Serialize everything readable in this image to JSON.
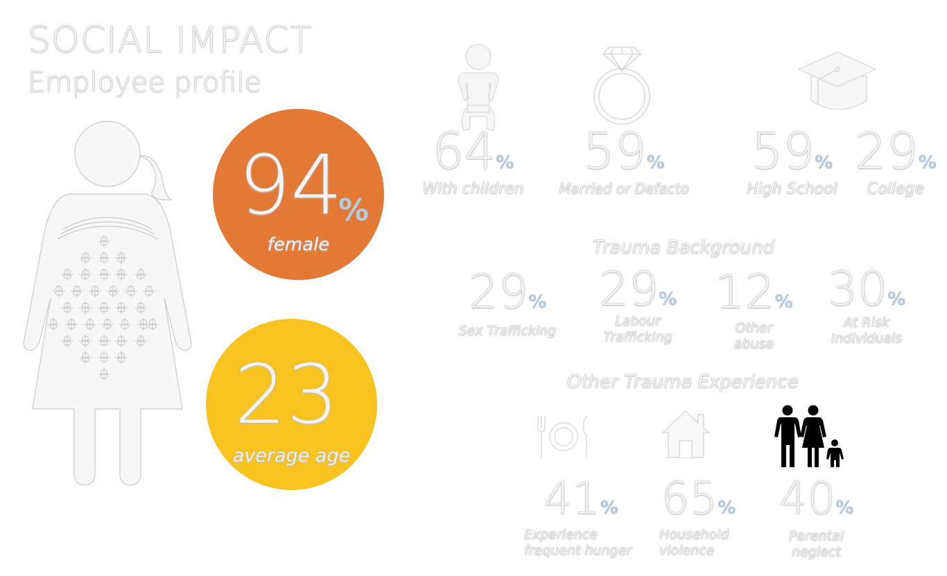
{
  "header": {
    "title": "SOCIAL IMPACT",
    "subtitle": "Employee profile"
  },
  "colors": {
    "orange": "#e47936",
    "yellow": "#f9c31f",
    "ghost": "#f3f3f3",
    "pct": "#b9c9dc"
  },
  "female": {
    "value": "94",
    "unit": "%",
    "label": "female"
  },
  "age": {
    "value": "23",
    "label": "average age"
  },
  "top_stats": [
    {
      "value": "64",
      "unit": "%",
      "label": "With children",
      "icon": "baby-icon"
    },
    {
      "value": "59",
      "unit": "%",
      "label": "Married or Defacto",
      "icon": "ring-icon"
    },
    {
      "value": "59",
      "unit": "%",
      "label": "High School",
      "icon": "graduation-cap-icon"
    },
    {
      "value": "29",
      "unit": "%",
      "label": "College"
    }
  ],
  "trauma": {
    "heading": "Trauma Background",
    "items": [
      {
        "value": "29",
        "unit": "%",
        "label_lines": [
          "Sex Trafficking"
        ]
      },
      {
        "value": "29",
        "unit": "%",
        "label_lines": [
          "Labour",
          "Trafficking"
        ]
      },
      {
        "value": "12",
        "unit": "%",
        "label_lines": [
          "Other",
          "abuse"
        ]
      },
      {
        "value": "30",
        "unit": "%",
        "label_lines": [
          "At Risk",
          "Individuals"
        ]
      }
    ]
  },
  "other_trauma": {
    "heading": "Other Trauma Experience",
    "items": [
      {
        "value": "41",
        "unit": "%",
        "label_lines": [
          "Experience",
          "frequent hunger"
        ],
        "icon": "plate-cutlery-icon"
      },
      {
        "value": "65",
        "unit": "%",
        "label_lines": [
          "Household",
          "violence"
        ],
        "icon": "house-icon"
      },
      {
        "value": "40",
        "unit": "%",
        "label_lines": [
          "Parental",
          "neglect"
        ],
        "icon": "family-icon"
      }
    ]
  }
}
